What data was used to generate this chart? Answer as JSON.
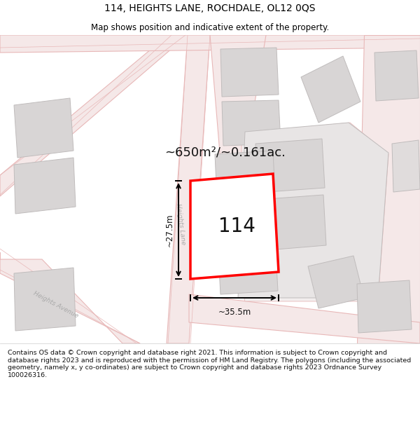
{
  "title": "114, HEIGHTS LANE, ROCHDALE, OL12 0QS",
  "subtitle": "Map shows position and indicative extent of the property.",
  "footer": "Contains OS data © Crown copyright and database right 2021. This information is subject to Crown copyright and database rights 2023 and is reproduced with the permission of HM Land Registry. The polygons (including the associated geometry, namely x, y co-ordinates) are subject to Crown copyright and database rights 2023 Ordnance Survey 100026316.",
  "map_bg": "#f7f5f5",
  "area_text": "~650m²/~0.161ac.",
  "property_number": "114",
  "dim_width": "~35.5m",
  "dim_height": "~27.5m",
  "road_fill": "#f5e8e8",
  "road_edge": "#e8b8b8",
  "building_fill": "#d8d5d5",
  "building_edge": "#c0bcbc",
  "highlight_color": "#ff0000",
  "prop_fill": "#ffffff"
}
